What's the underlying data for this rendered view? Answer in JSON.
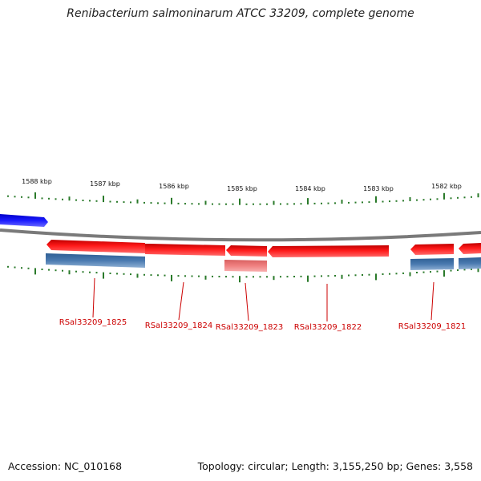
{
  "title": "Renibacterium salmoninarum ATCC 33209, complete genome",
  "footer": {
    "accession": "Accession: NC_010168",
    "topology": "Topology: circular; Length: 3,155,250 bp; Genes: 3,558"
  },
  "kbp_labels": [
    "1588 kbp",
    "1587 kbp",
    "1586 kbp",
    "1585 kbp",
    "1584 kbp",
    "1583 kbp",
    "1582 kbp"
  ],
  "gene_labels": [
    "RSal33209_1825",
    "RSal33209_1824",
    "RSal33209_1823",
    "RSal33209_1822",
    "RSal33209_1821"
  ],
  "colors": {
    "backbone": "#808080",
    "cds": "#ff0000",
    "cds_light": "#f08080",
    "gene": "#4a7ab0",
    "forward": "#1010ff",
    "tick": "#2a7a2a",
    "label": "#cc0000"
  }
}
